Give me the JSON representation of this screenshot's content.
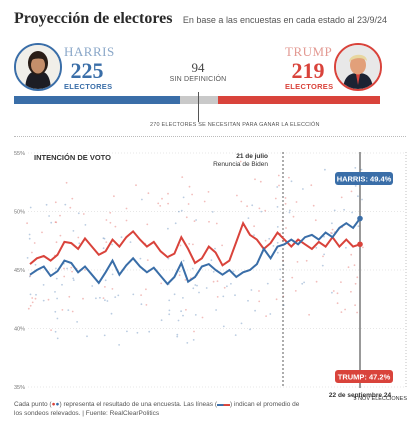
{
  "header": {
    "title": "Proyección de electores",
    "subtitle": "En base a las encuestas en cada estado al 23/9/24"
  },
  "harris": {
    "name": "HARRIS",
    "electors": "225",
    "label": "ELECTORES",
    "color": "#3a6ea8"
  },
  "trump": {
    "name": "TRUMP",
    "electors": "219",
    "label": "ELECTORES",
    "color": "#d9433b"
  },
  "undecided": {
    "count": "94",
    "label": "SIN DEFINICIÓN"
  },
  "threshold_text": "270 ELECTORES   SE NECESITAN PARA GANAR LA ELECCIÓN",
  "footer": {
    "line1": "Cada punto (",
    "line1b": ") representa el resultado de una encuesta. Las líneas (",
    "line1c": ") indican el promedio de",
    "line2": "los sondeos relevados. | Fuente: RealClearPolitics"
  },
  "chart_data": {
    "type": "line",
    "title": "INTENCIÓN DE VOTO",
    "ylim": [
      35,
      55
    ],
    "yticks": [
      "55%",
      "50%",
      "45%",
      "40%",
      "35%"
    ],
    "ytick_values": [
      55,
      50,
      45,
      40,
      35
    ],
    "annotation_biden": {
      "date_label": "21 de julio",
      "text": "Renuncia de Biden"
    },
    "current_date_label": "22 de septiembre 24",
    "end_label": "5 NOV ELECCIONES",
    "series": [
      {
        "name": "HARRIS",
        "label": "HARRIS: 49.4%",
        "final": 49.4,
        "color": "#3a6ea8",
        "values": [
          44.6,
          45.0,
          45.3,
          44.5,
          44.9,
          45.8,
          45.6,
          44.8,
          45.3,
          44.6,
          43.9,
          44.8,
          45.8,
          44.6,
          45.4,
          46.0,
          45.3,
          44.8,
          45.2,
          44.5,
          43.8,
          44.4,
          45.6,
          44.0,
          44.4,
          45.3,
          45.5,
          45.0,
          44.6,
          45.0,
          44.4,
          44.8,
          45.0,
          45.5,
          46.8,
          46.0,
          47.0,
          47.2,
          47.6,
          47.2,
          47.8,
          48.0,
          47.6,
          48.2,
          47.8,
          48.6,
          49.0,
          48.6,
          49.4
        ]
      },
      {
        "name": "TRUMP",
        "label": "TRUMP: 47.2%",
        "final": 47.2,
        "color": "#d9433b",
        "values": [
          45.5,
          46.0,
          46.2,
          45.8,
          46.3,
          47.4,
          47.3,
          46.8,
          47.7,
          47.0,
          46.3,
          46.6,
          47.6,
          47.0,
          47.8,
          48.3,
          47.6,
          47.0,
          47.4,
          46.6,
          46.1,
          46.4,
          47.8,
          46.8,
          45.6,
          46.0,
          47.0,
          46.5,
          45.4,
          45.8,
          47.4,
          49.0,
          48.0,
          47.6,
          46.8,
          47.3,
          48.2,
          47.6,
          47.0,
          47.6,
          47.2,
          46.8,
          47.4,
          47.0,
          47.8,
          47.0,
          47.6,
          47.0,
          47.2
        ]
      }
    ]
  }
}
